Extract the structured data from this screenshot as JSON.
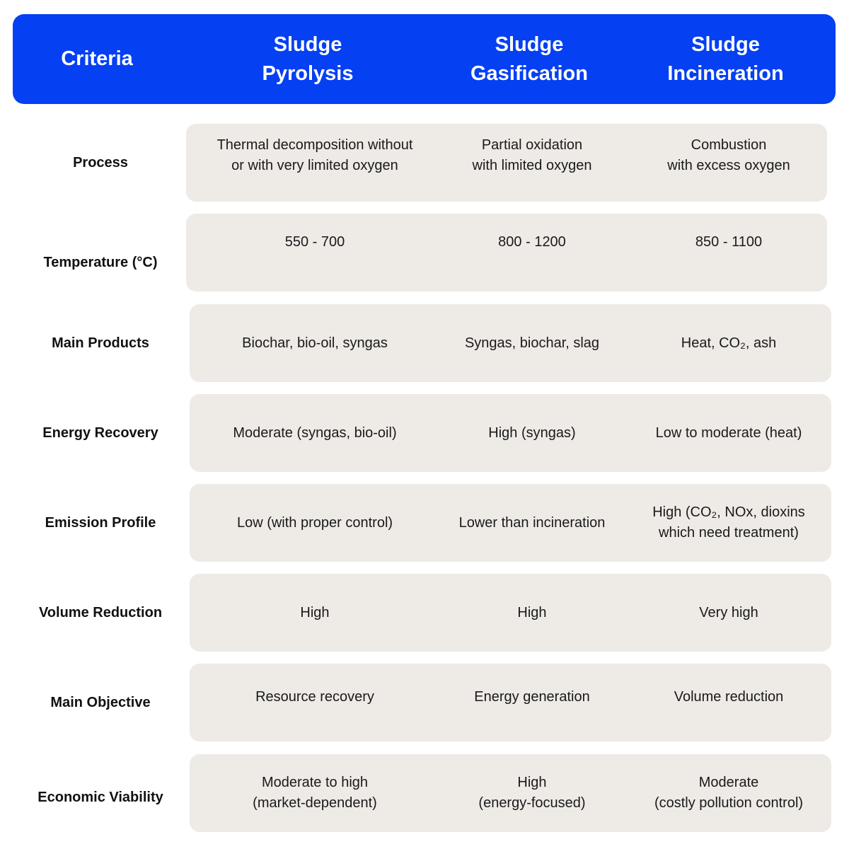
{
  "header": {
    "criteria": "Criteria",
    "columns": [
      "Sludge\nPyrolysis",
      "Sludge\nGasification",
      "Sludge\nIncineration"
    ]
  },
  "colors": {
    "header_bg": "#0540F2",
    "cell_bg": "#EEEAE6"
  },
  "rows": [
    {
      "label": "Process",
      "cells": [
        "Thermal decomposition without\nor with very limited oxygen",
        "Partial oxidation\nwith limited oxygen",
        "Combustion\nwith excess oxygen"
      ]
    },
    {
      "label": "Temperature (°C)",
      "cells": [
        "550 - 700",
        "800 - 1200",
        "850 - 1100"
      ]
    },
    {
      "label": "Main Products",
      "cells": [
        "Biochar, bio-oil, syngas",
        "Syngas, biochar, slag",
        "Heat, CO₂, ash"
      ]
    },
    {
      "label": "Energy Recovery",
      "cells": [
        "Moderate (syngas, bio-oil)",
        "High (syngas)",
        "Low to moderate (heat)"
      ]
    },
    {
      "label": "Emission Profile",
      "cells": [
        "Low (with proper control)",
        "Lower than incineration",
        "High (CO₂, NOx, dioxins\nwhich need treatment)"
      ]
    },
    {
      "label": "Volume Reduction",
      "cells": [
        "High",
        "High",
        "Very high"
      ]
    },
    {
      "label": "Main Objective",
      "cells": [
        "Resource recovery",
        "Energy generation",
        "Volume reduction"
      ]
    },
    {
      "label": "Economic Viability",
      "cells": [
        "Moderate to high\n(market-dependent)",
        "High\n(energy-focused)",
        "Moderate\n(costly pollution control)"
      ]
    }
  ]
}
